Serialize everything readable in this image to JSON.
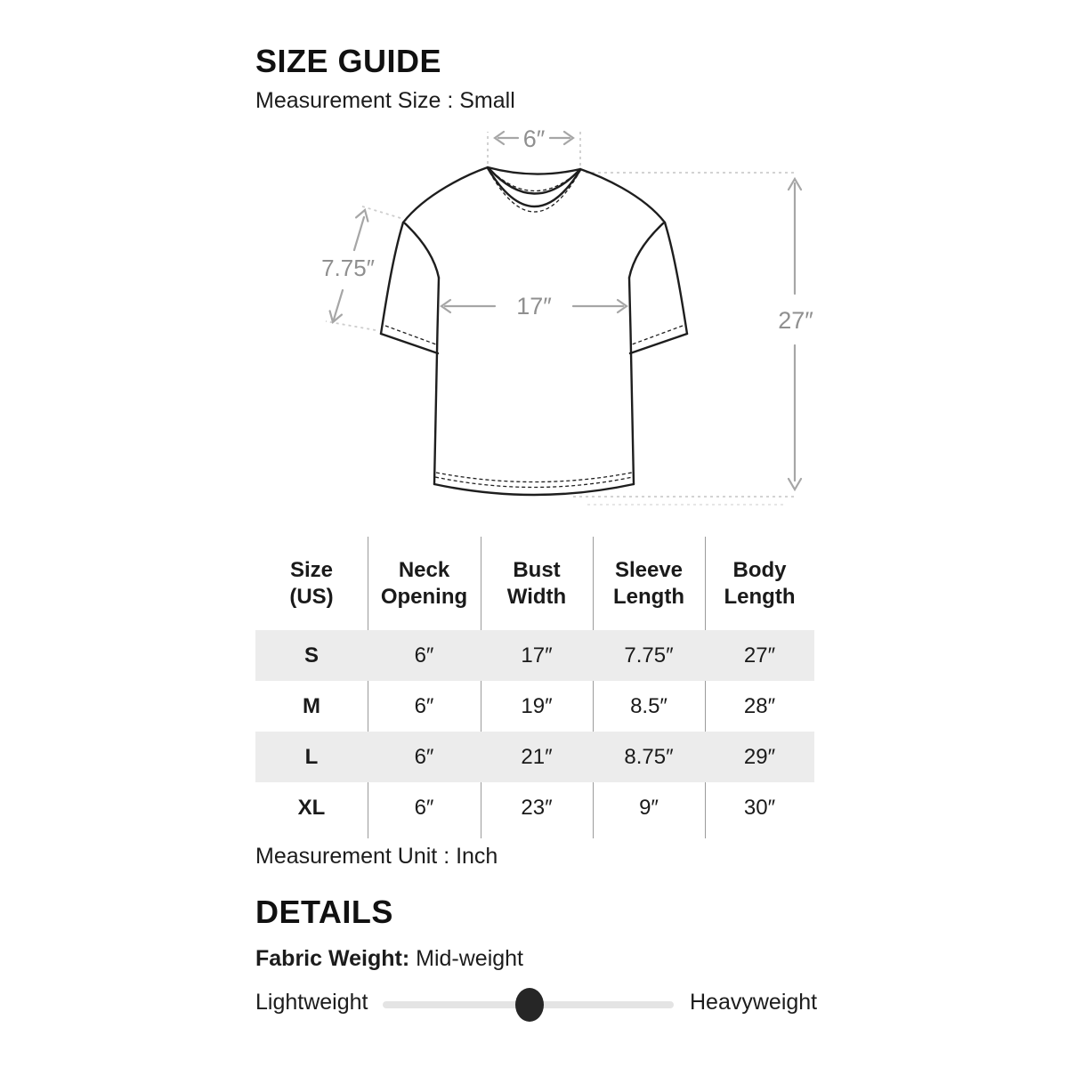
{
  "header": {
    "title": "SIZE GUIDE",
    "subtitle": "Measurement Size : Small"
  },
  "diagram": {
    "neck_opening_label": "6″",
    "sleeve_length_label": "7.75″",
    "bust_width_label": "17″",
    "body_length_label": "27″"
  },
  "size_table": {
    "headers": [
      {
        "lines": [
          "Size",
          "(US)"
        ]
      },
      {
        "lines": [
          "Neck",
          "Opening"
        ]
      },
      {
        "lines": [
          "Bust",
          "Width"
        ]
      },
      {
        "lines": [
          "Sleeve",
          "Length"
        ]
      },
      {
        "lines": [
          "Body",
          "Length"
        ]
      }
    ],
    "rows": [
      {
        "size": "S",
        "neck_opening": "6″",
        "bust_width": "17″",
        "sleeve_length": "7.75″",
        "body_length": "27″"
      },
      {
        "size": "M",
        "neck_opening": "6″",
        "bust_width": "19″",
        "sleeve_length": "8.5″",
        "body_length": "28″"
      },
      {
        "size": "L",
        "neck_opening": "6″",
        "bust_width": "21″",
        "sleeve_length": "8.75″",
        "body_length": "29″"
      },
      {
        "size": "XL",
        "neck_opening": "6″",
        "bust_width": "23″",
        "sleeve_length": "9″",
        "body_length": "30″"
      }
    ],
    "unit_note": "Measurement Unit : Inch"
  },
  "details": {
    "heading": "DETAILS",
    "fabric_weight_label": "Fabric Weight:",
    "fabric_weight_value": "Mid-weight",
    "slider": {
      "left_label": "Lightweight",
      "right_label": "Heavyweight",
      "position_percent": 50.5
    }
  },
  "colors": {
    "text": "#1b1b1b",
    "table_shaded_row": "#ececec",
    "table_divider": "#9b9b9b",
    "measure_annotation": "#9e9e9e",
    "guide_dash": "#cdcdcd",
    "slider_track": "#e4e4e4",
    "slider_knob": "#262626"
  }
}
